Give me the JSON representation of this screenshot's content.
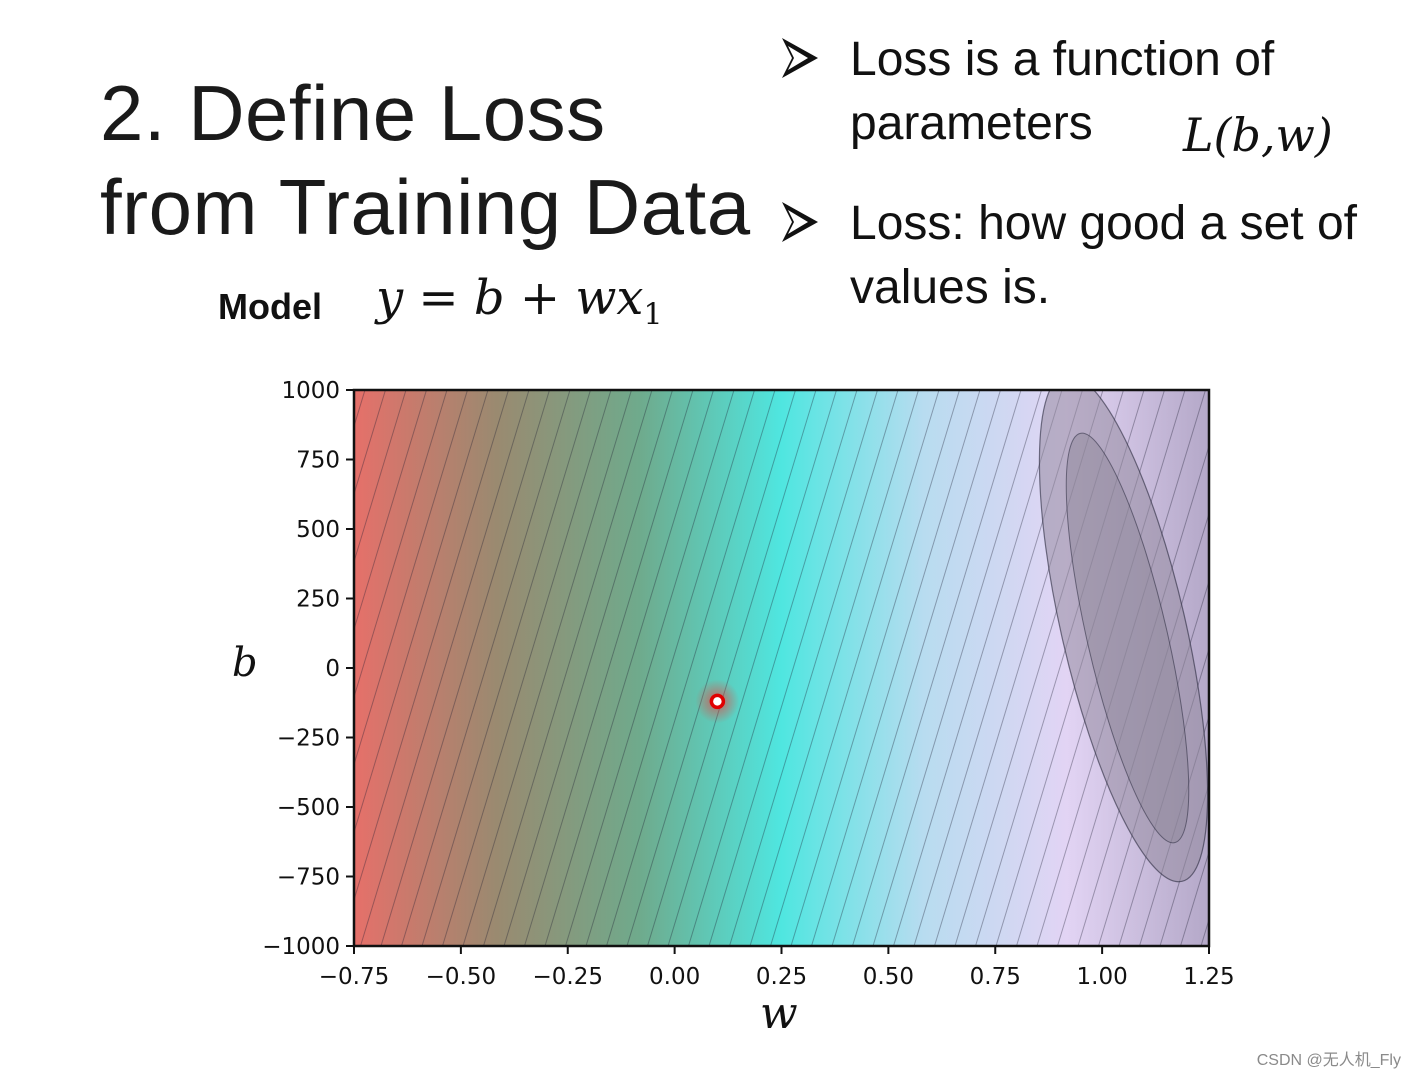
{
  "title": {
    "line1": "2. Define Loss",
    "line2": "from Training Data"
  },
  "bullets": [
    {
      "icon": "arrow-bullet-icon",
      "lines": [
        "Loss is a function of",
        "parameters"
      ]
    },
    {
      "icon": "arrow-bullet-icon",
      "lines": [
        "Loss: how good a set of",
        "values is."
      ]
    }
  ],
  "formula_loss": "L(b,w)",
  "model": {
    "label": "Model",
    "eq_main": "y = b + wx",
    "eq_sub": "1"
  },
  "watermark": "CSDN @无人机_Fly",
  "chart_data": {
    "type": "heatmap",
    "xlabel": "w",
    "ylabel": "b",
    "xlim": [
      -0.75,
      1.25
    ],
    "ylim": [
      -1000,
      1000
    ],
    "x_ticks": [
      -0.75,
      -0.5,
      -0.25,
      0.0,
      0.25,
      0.5,
      0.75,
      1.0,
      1.25
    ],
    "x_tick_labels": [
      "−0.75",
      "−0.50",
      "−0.25",
      "0.00",
      "0.25",
      "0.50",
      "0.75",
      "1.00",
      "1.25"
    ],
    "y_ticks": [
      1000,
      750,
      500,
      250,
      0,
      -250,
      -500,
      -750,
      -1000
    ],
    "y_tick_labels": [
      "1000",
      "750",
      "500",
      "250",
      "0",
      "−250",
      "−500",
      "−750",
      "−1000"
    ],
    "contour": "loss L(b,w) filled contours, diagonal bands",
    "minimum_region": {
      "w": 1.05,
      "b": 0
    },
    "colormap": [
      "#e6706a",
      "#9a8a70",
      "#6faa8c",
      "#4fe6e0",
      "#b8dcf0",
      "#e2d4f4",
      "#b4a8c8"
    ],
    "marker": {
      "w": 0.1,
      "b": -120,
      "color": "#e00000"
    },
    "grid": false
  }
}
